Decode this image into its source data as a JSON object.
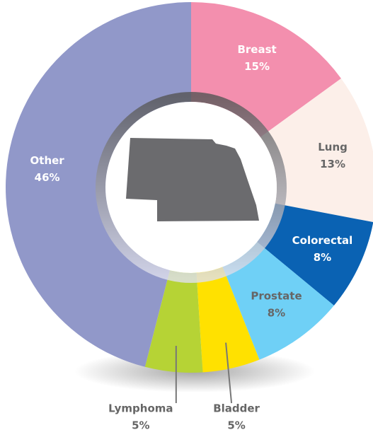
{
  "chart_data": {
    "type": "donut",
    "categories": [
      "Breast",
      "Lung",
      "Colorectal",
      "Prostate",
      "Bladder",
      "Lymphoma",
      "Other"
    ],
    "values": [
      15,
      13,
      8,
      8,
      5,
      5,
      46
    ],
    "value_labels": [
      "15%",
      "13%",
      "8%",
      "8%",
      "5%",
      "5%",
      "46%"
    ],
    "colors": [
      "#f38fae",
      "#fcefe9",
      "#0a62b3",
      "#6fd0f6",
      "#ffe100",
      "#b6d335",
      "#9198c9"
    ],
    "label_colors": [
      "#ffffff",
      "#666666",
      "#ffffff",
      "#666666",
      "#666666",
      "#666666",
      "#ffffff"
    ]
  }
}
